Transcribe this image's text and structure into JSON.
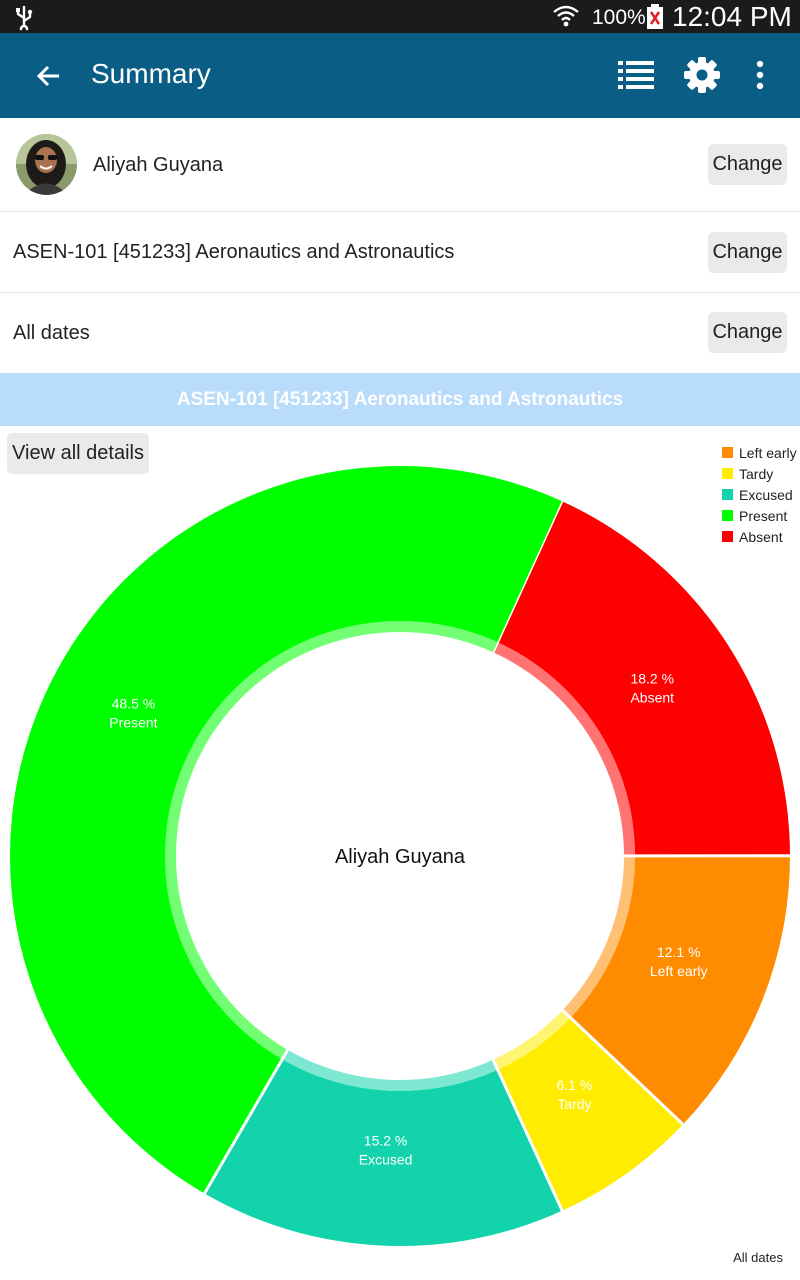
{
  "status_bar": {
    "battery_percent": "100%",
    "time": "12:04 PM"
  },
  "app_bar": {
    "title": "Summary",
    "back_icon": "arrow-left-icon",
    "list_icon": "list-view-icon",
    "settings_icon": "gear-icon",
    "more_icon": "more-vert-icon"
  },
  "selectors": {
    "student": {
      "label": "Aliyah Guyana",
      "button": "Change"
    },
    "course": {
      "label": "ASEN-101 [451233] Aeronautics and Astronautics",
      "button": "Change"
    },
    "dates": {
      "label": "All dates",
      "button": "Change"
    }
  },
  "banner": {
    "title": "ASEN-101 [451233] Aeronautics and Astronautics"
  },
  "details_button": "View all details",
  "footer_note": "All dates",
  "chart_data": {
    "type": "pie",
    "center_label": "Aliyah Guyana",
    "legend_placement": "top-right",
    "legend": [
      {
        "label": "Left early",
        "color": "#ff8c00"
      },
      {
        "label": "Tardy",
        "color": "#ffec00"
      },
      {
        "label": "Excused",
        "color": "#13d3ac"
      },
      {
        "label": "Present",
        "color": "#00ff00"
      },
      {
        "label": "Absent",
        "color": "#ff0000"
      }
    ],
    "slices": [
      {
        "label": "Absent",
        "value": 18.2,
        "value_text": "18.2 %",
        "color": "#ff0000"
      },
      {
        "label": "Left early",
        "value": 12.1,
        "value_text": "12.1 %",
        "color": "#ff8c00"
      },
      {
        "label": "Tardy",
        "value": 6.1,
        "value_text": "6.1 %",
        "color": "#ffec00"
      },
      {
        "label": "Excused",
        "value": 15.2,
        "value_text": "15.2 %",
        "color": "#13d3ac"
      },
      {
        "label": "Present",
        "value": 48.5,
        "value_text": "48.5 %",
        "color": "#00ff00"
      }
    ]
  }
}
